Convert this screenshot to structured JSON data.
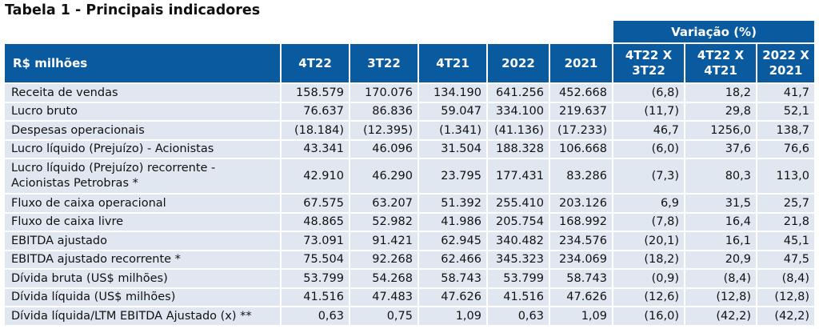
{
  "title": "Tabela 1 - Principais indicadores",
  "header": {
    "unit_label": "R$ milhões",
    "periods": [
      "4T22",
      "3T22",
      "4T21",
      "2022",
      "2021"
    ],
    "variation_group": "Variação (%)",
    "variations": [
      {
        "line1": "4T22 X",
        "line2": "3T22"
      },
      {
        "line1": "4T22 X",
        "line2": "4T21"
      },
      {
        "line1": "2022 X",
        "line2": "2021"
      }
    ]
  },
  "rows": [
    {
      "label": "Receita de vendas",
      "values": [
        "158.579",
        "170.076",
        "134.190",
        "641.256",
        "452.668"
      ],
      "variations": [
        "(6,8)",
        "18,2",
        "41,7"
      ]
    },
    {
      "label": "Lucro bruto",
      "values": [
        "76.637",
        "86.836",
        "59.047",
        "334.100",
        "219.637"
      ],
      "variations": [
        "(11,7)",
        "29,8",
        "52,1"
      ]
    },
    {
      "label": "Despesas operacionais",
      "values": [
        "(18.184)",
        "(12.395)",
        "(1.341)",
        "(41.136)",
        "(17.233)"
      ],
      "variations": [
        "46,7",
        "1256,0",
        "138,7"
      ]
    },
    {
      "label": "Lucro líquido (Prejuízo) - Acionistas",
      "values": [
        "43.341",
        "46.096",
        "31.504",
        "188.328",
        "106.668"
      ],
      "variations": [
        "(6,0)",
        "37,6",
        "76,6"
      ]
    },
    {
      "label_line1": "Lucro líquido (Prejuízo) recorrente -",
      "label_line2": "Acionistas Petrobras *",
      "values": [
        "42.910",
        "46.290",
        "23.795",
        "177.431",
        "83.286"
      ],
      "variations": [
        "(7,3)",
        "80,3",
        "113,0"
      ]
    },
    {
      "label": "Fluxo de caixa operacional",
      "values": [
        "67.575",
        "63.207",
        "51.392",
        "255.410",
        "203.126"
      ],
      "variations": [
        "6,9",
        "31,5",
        "25,7"
      ]
    },
    {
      "label": "Fluxo de caixa livre",
      "values": [
        "48.865",
        "52.982",
        "41.986",
        "205.754",
        "168.992"
      ],
      "variations": [
        "(7,8)",
        "16,4",
        "21,8"
      ]
    },
    {
      "label": "EBITDA ajustado",
      "values": [
        "73.091",
        "91.421",
        "62.945",
        "340.482",
        "234.576"
      ],
      "variations": [
        "(20,1)",
        "16,1",
        "45,1"
      ]
    },
    {
      "label": "EBITDA ajustado recorrente *",
      "values": [
        "75.504",
        "92.268",
        "62.466",
        "345.323",
        "234.069"
      ],
      "variations": [
        "(18,2)",
        "20,9",
        "47,5"
      ]
    },
    {
      "label": "Dívida bruta (US$ milhões)",
      "values": [
        "53.799",
        "54.268",
        "58.743",
        "53.799",
        "58.743"
      ],
      "variations": [
        "(0,9)",
        "(8,4)",
        "(8,4)"
      ]
    },
    {
      "label": "Dívida líquida (US$ milhões)",
      "values": [
        "41.516",
        "47.483",
        "47.626",
        "41.516",
        "47.626"
      ],
      "variations": [
        "(12,6)",
        "(12,8)",
        "(12,8)"
      ]
    },
    {
      "label": "Dívida líquida/LTM EBITDA Ajustado (x) **",
      "values": [
        "0,63",
        "0,75",
        "1,09",
        "0,63",
        "1,09"
      ],
      "variations": [
        "(16,0)",
        "(42,2)",
        "(42,2)"
      ]
    }
  ],
  "colors": {
    "header_bg": "#0a5aa0",
    "row_bg": "#e1e7f0",
    "header_text": "#ffffff"
  }
}
